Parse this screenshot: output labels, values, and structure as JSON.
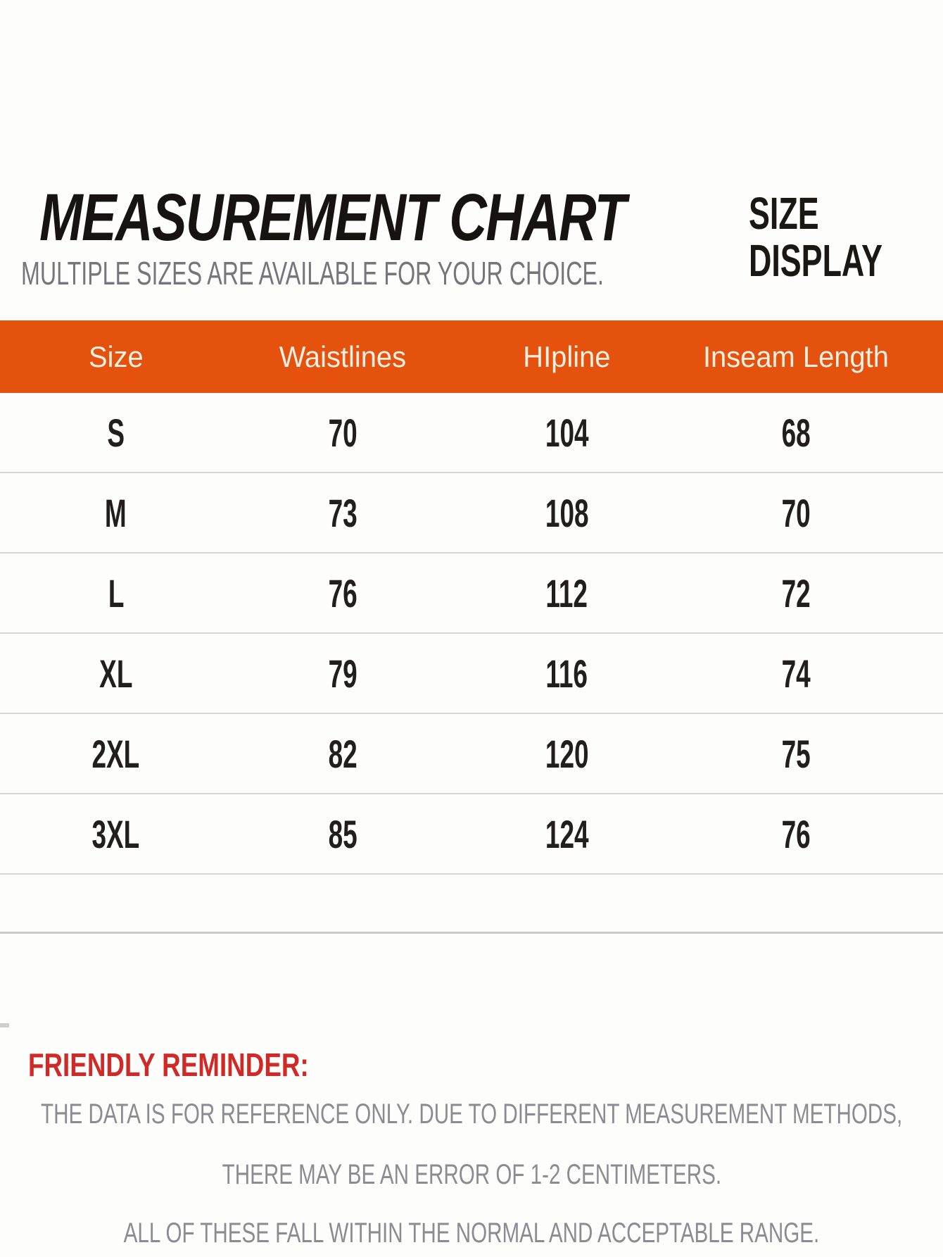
{
  "header": {
    "title": "MEASUREMENT CHART",
    "subtitle": "MULTIPLE SIZES ARE AVAILABLE FOR YOUR CHOICE.",
    "size_display": [
      "SIZE",
      "DISPLAY"
    ]
  },
  "table": {
    "headers": [
      "Size",
      "Waistlines",
      "HIpline",
      "Inseam Length"
    ],
    "rows": [
      [
        "S",
        "70",
        "104",
        "68"
      ],
      [
        "M",
        "73",
        "108",
        "70"
      ],
      [
        "L",
        "76",
        "112",
        "72"
      ],
      [
        "XL",
        "79",
        "116",
        "74"
      ],
      [
        "2XL",
        "82",
        "120",
        "75"
      ],
      [
        "3XL",
        "85",
        "124",
        "76"
      ]
    ]
  },
  "reminder": {
    "heading": "FRIENDLY REMINDER:",
    "lines": [
      "THE DATA IS FOR REFERENCE ONLY. DUE TO DIFFERENT MEASUREMENT METHODS,",
      "THERE MAY BE AN ERROR OF 1-2 CENTIMETERS.",
      "ALL OF THESE FALL WITHIN THE NORMAL AND ACCEPTABLE RANGE."
    ]
  },
  "colors": {
    "accent_orange": "#e4520e",
    "header_text": "#f7efe2",
    "reminder_red": "#cf2a28",
    "body_gray": "#8c8b91",
    "subtitle_gray": "#76757b",
    "separator_gray": "#d7d7d7"
  },
  "chart_data": {
    "type": "table",
    "title": "MEASUREMENT CHART",
    "subtitle": "MULTIPLE SIZES ARE AVAILABLE FOR YOUR CHOICE.",
    "columns": [
      "Size",
      "Waistlines",
      "HIpline",
      "Inseam Length"
    ],
    "rows": [
      [
        "S",
        70,
        104,
        68
      ],
      [
        "M",
        73,
        108,
        70
      ],
      [
        "L",
        76,
        112,
        72
      ],
      [
        "XL",
        79,
        116,
        74
      ],
      [
        "2XL",
        82,
        120,
        75
      ],
      [
        "3XL",
        85,
        124,
        76
      ]
    ],
    "notes": [
      "FRIENDLY REMINDER:",
      "THE DATA IS FOR REFERENCE ONLY. DUE TO DIFFERENT MEASUREMENT METHODS,",
      "THERE MAY BE AN ERROR OF 1-2 CENTIMETERS.",
      "ALL OF THESE FALL WITHIN THE NORMAL AND ACCEPTABLE RANGE."
    ]
  }
}
